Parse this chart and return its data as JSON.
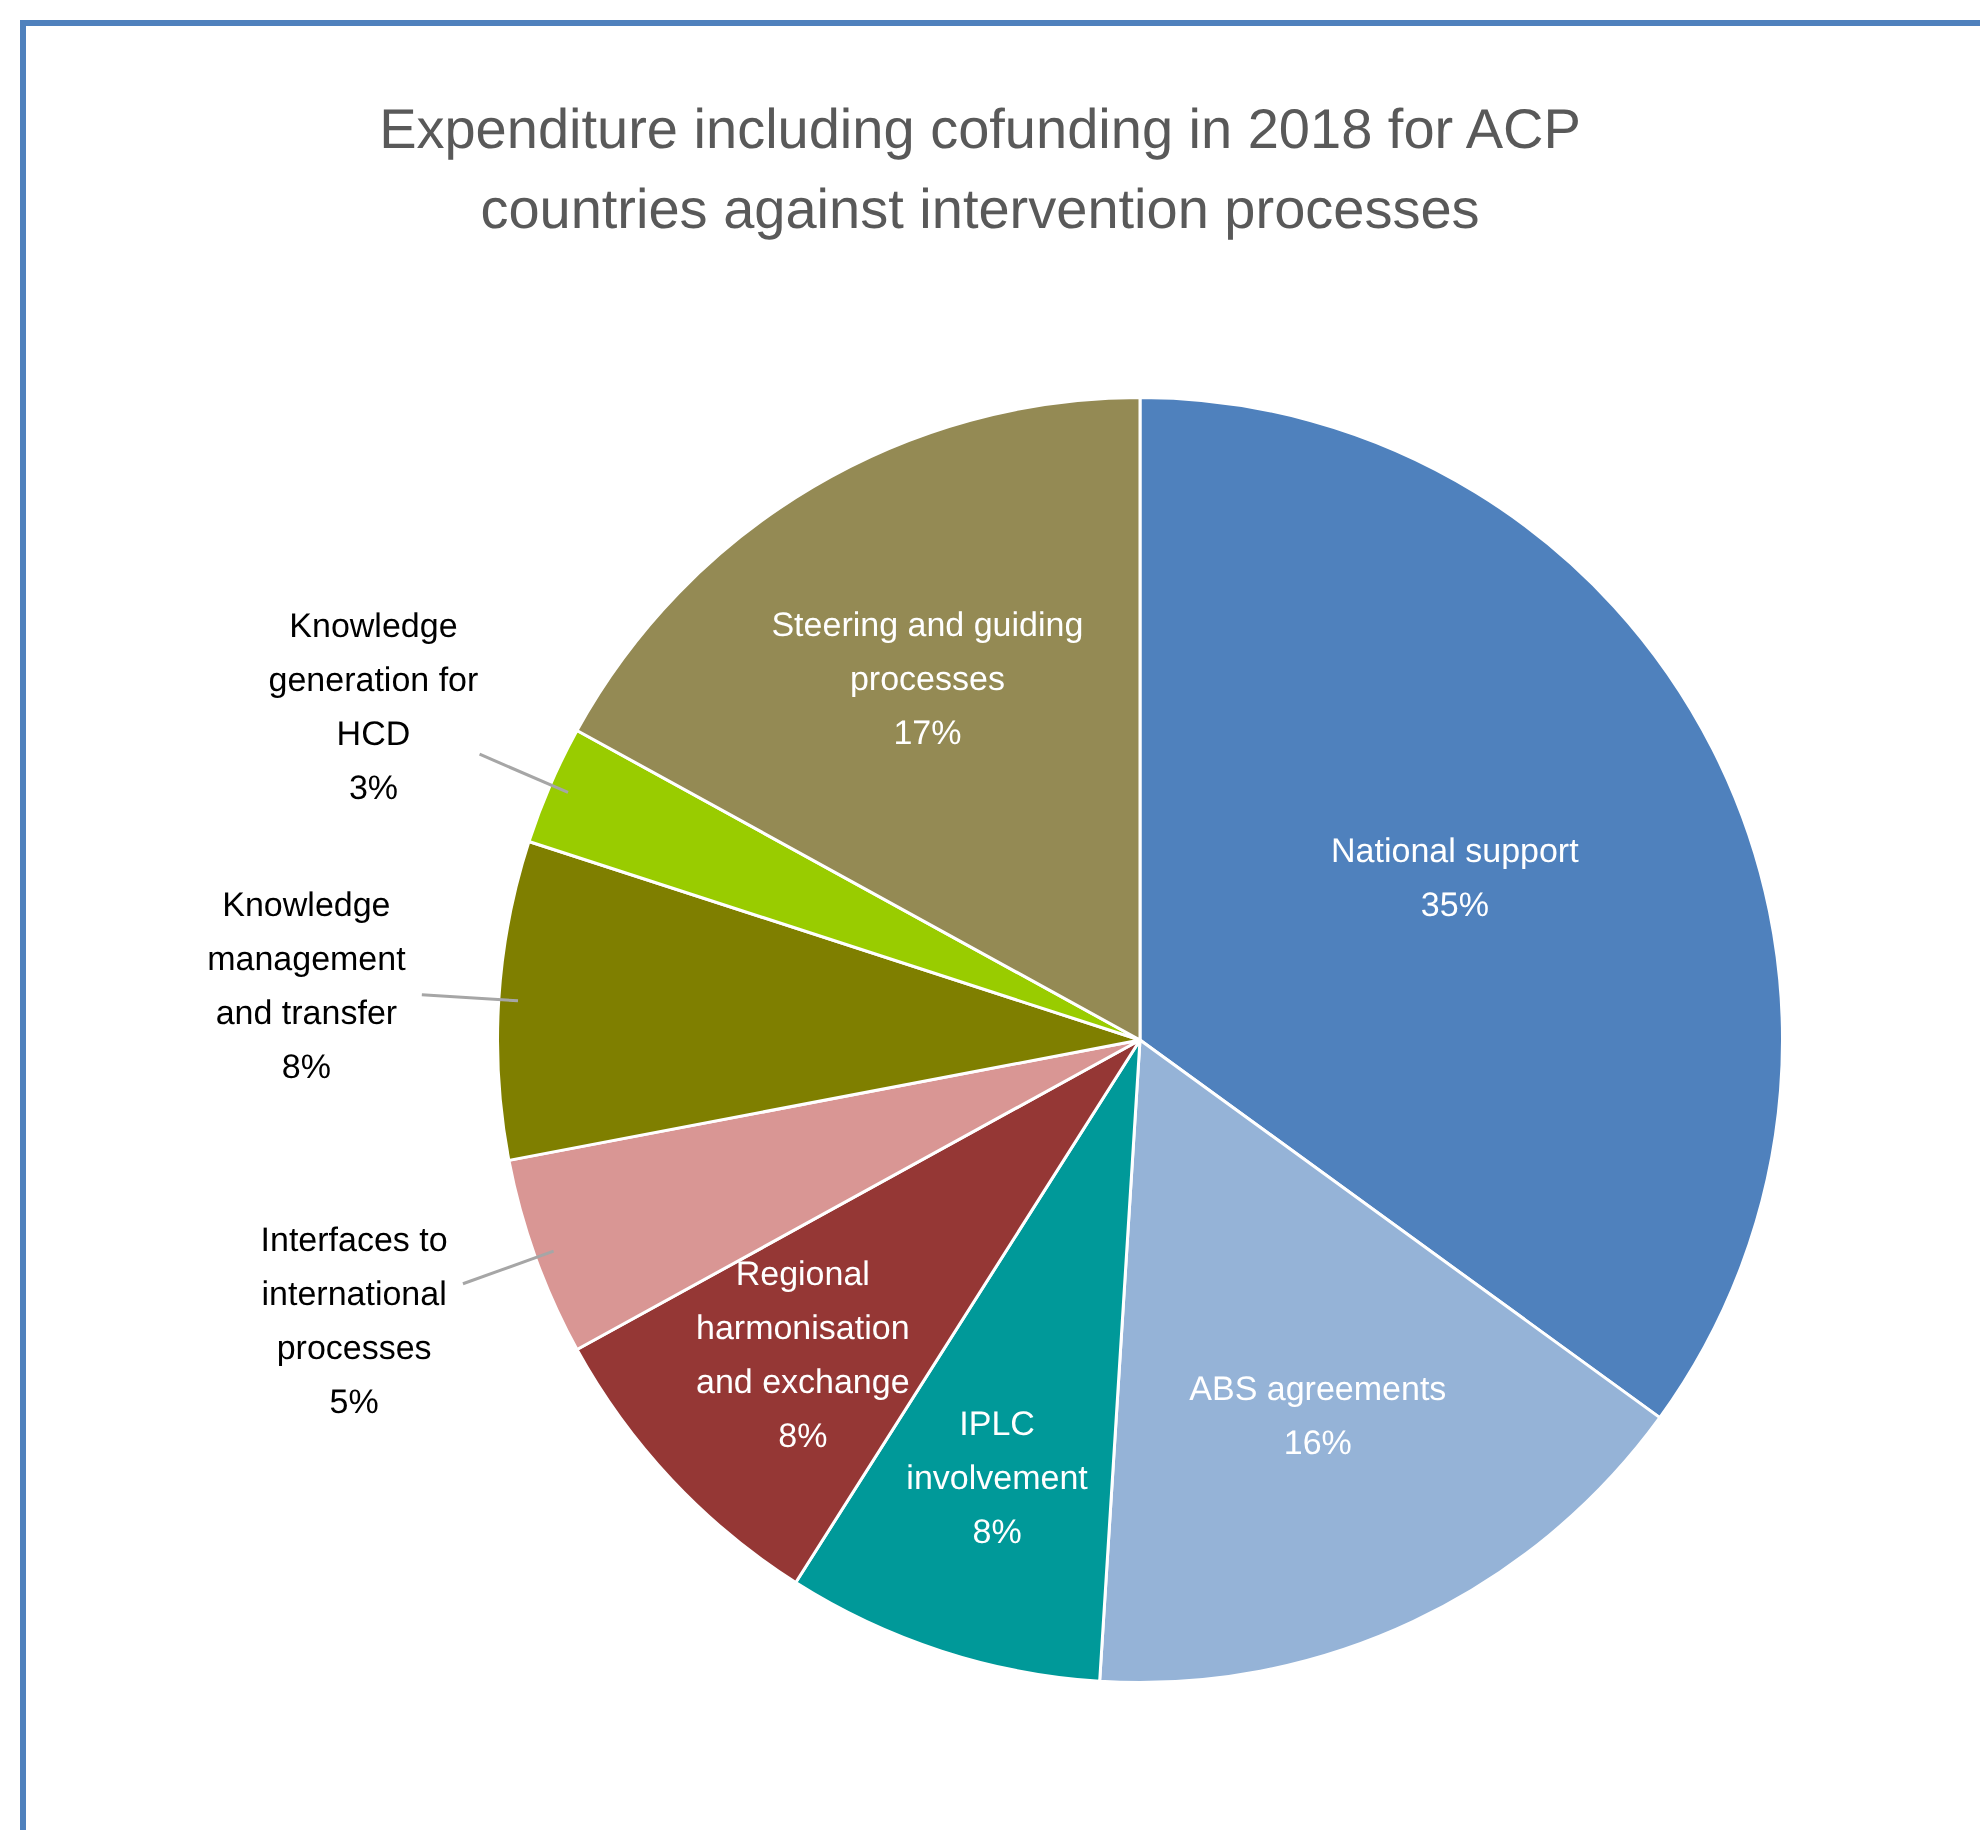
{
  "chart_data": {
    "type": "pie",
    "title": "Expenditure including cofunding in 2018 for ACP countries against intervention processes",
    "categories": [
      "National support",
      "ABS agreements",
      "IPLC involvement",
      "Regional harmonisation and exchange",
      "Interfaces to international processes",
      "Knowledge management and transfer",
      "Knowledge generation for HCD",
      "Steering and guiding processes"
    ],
    "values": [
      35,
      16,
      8,
      8,
      5,
      8,
      3,
      17
    ],
    "colors": [
      "#4f81bd",
      "#95b3d7",
      "#009999",
      "#953735",
      "#d99694",
      "#7f7f00",
      "#99cc00",
      "#948a54"
    ],
    "value_labels": [
      "35%",
      "16%",
      "8%",
      "8%",
      "5%",
      "8%",
      "3%",
      "17%"
    ],
    "legend": false
  }
}
